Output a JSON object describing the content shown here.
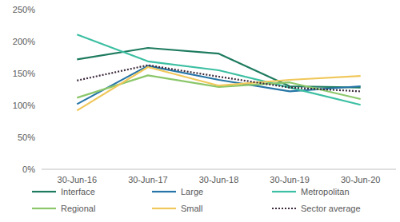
{
  "chart_data": {
    "type": "line",
    "categories": [
      "30-Jun-16",
      "30-Jun-17",
      "30-Jun-18",
      "30-Jun-19",
      "30-Jun-20"
    ],
    "series": [
      {
        "name": "Interface",
        "color": "#1e7b5f",
        "line_style": "solid",
        "values": [
          172,
          190,
          181,
          130,
          128
        ]
      },
      {
        "name": "Large",
        "color": "#2675a6",
        "line_style": "solid",
        "values": [
          102,
          162,
          140,
          122,
          130
        ]
      },
      {
        "name": "Metropolitan",
        "color": "#3cbfa2",
        "line_style": "solid",
        "values": [
          211,
          169,
          155,
          128,
          101
        ]
      },
      {
        "name": "Regional",
        "color": "#8cc76b",
        "line_style": "solid",
        "values": [
          112,
          147,
          129,
          136,
          110
        ]
      },
      {
        "name": "Small",
        "color": "#f0c75a",
        "line_style": "solid",
        "values": [
          92,
          160,
          131,
          140,
          146
        ]
      },
      {
        "name": "Sector average",
        "color": "#3c2a3c",
        "line_style": "dotted",
        "values": [
          139,
          163,
          145,
          128,
          122
        ]
      }
    ],
    "ylim": [
      0,
      250
    ],
    "yticks": [
      {
        "value": 0,
        "label": "0%"
      },
      {
        "value": 50,
        "label": "50%"
      },
      {
        "value": 100,
        "label": "100%"
      },
      {
        "value": 150,
        "label": "150%"
      },
      {
        "value": 200,
        "label": "200%"
      },
      {
        "value": 250,
        "label": "250%"
      }
    ],
    "grid": false,
    "legend": "bottom"
  }
}
